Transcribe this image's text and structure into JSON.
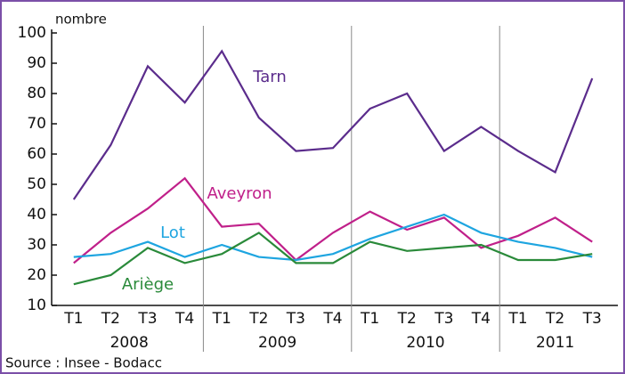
{
  "chart_data": {
    "type": "line",
    "y_label": "nombre",
    "source": "Source : Insee - Bodacc",
    "categories": [
      "T1",
      "T2",
      "T3",
      "T4",
      "T1",
      "T2",
      "T3",
      "T4",
      "T1",
      "T2",
      "T3",
      "T4",
      "T1",
      "T2",
      "T3"
    ],
    "category_groups": [
      "2008",
      "2009",
      "2010",
      "2011"
    ],
    "ylim": [
      10,
      100
    ],
    "yticks": [
      10,
      20,
      30,
      40,
      50,
      60,
      70,
      80,
      90,
      100
    ],
    "series": [
      {
        "name": "Tarn",
        "color": "#5b2c8c",
        "values": [
          45,
          63,
          89,
          77,
          94,
          72,
          61,
          62,
          75,
          80,
          61,
          69,
          61,
          54,
          85
        ]
      },
      {
        "name": "Aveyron",
        "color": "#c0208a",
        "values": [
          24,
          34,
          42,
          52,
          36,
          37,
          25,
          34,
          41,
          35,
          39,
          29,
          33,
          39,
          31
        ]
      },
      {
        "name": "Lot",
        "color": "#1ea5e0",
        "values": [
          26,
          27,
          31,
          26,
          30,
          26,
          25,
          27,
          32,
          36,
          40,
          34,
          31,
          29,
          26
        ]
      },
      {
        "name": "Ariège",
        "color": "#2a8a3a",
        "values": [
          17,
          20,
          29,
          24,
          27,
          34,
          24,
          24,
          31,
          28,
          29,
          30,
          25,
          25,
          27
        ]
      }
    ]
  }
}
